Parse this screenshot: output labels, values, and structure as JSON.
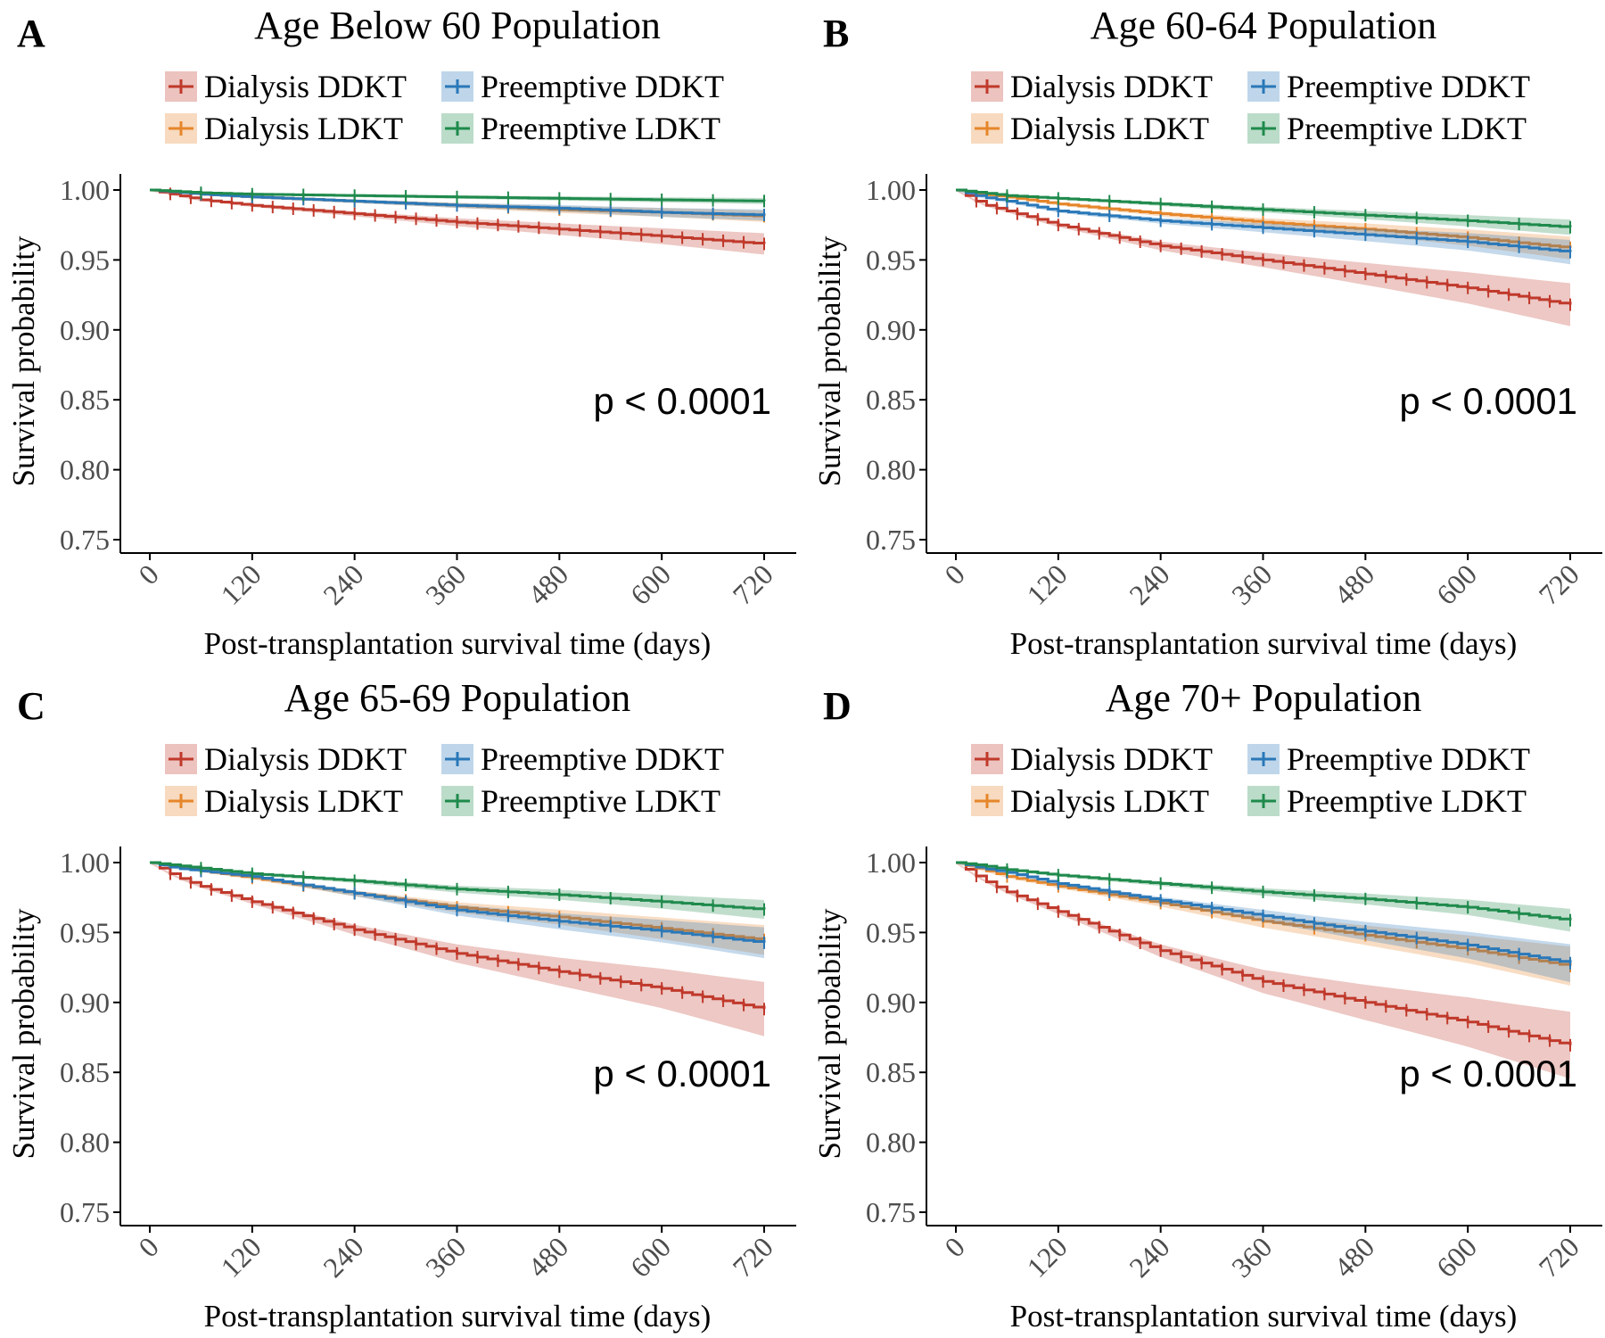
{
  "colors": {
    "Dialysis DDKT": "#c0392b",
    "Dialysis LDKT": "#e6862a",
    "Preemptive DDKT": "#2a78b8",
    "Preemptive LDKT": "#1f8a4c",
    "axis": "#000000",
    "tick_text": "#4d4d4d"
  },
  "chart_data": [
    {
      "panel_letter": "A",
      "type": "line",
      "title": "Age Below 60 Population",
      "xlabel": "Post-transplantation survival time (days)",
      "ylabel": "Survival probability",
      "xticks": [
        "0",
        "120",
        "240",
        "360",
        "480",
        "600",
        "720"
      ],
      "yticks": [
        "0.75",
        "0.80",
        "0.85",
        "0.90",
        "0.95",
        "1.00"
      ],
      "xlim": [
        0,
        730
      ],
      "ylim": [
        0.75,
        1.0
      ],
      "legend": [
        "Dialysis DDKT",
        "Preemptive DDKT",
        "Dialysis LDKT",
        "Preemptive LDKT"
      ],
      "annotation": "p < 0.0001",
      "grid": false,
      "series": [
        {
          "name": "Dialysis DDKT",
          "x": [
            0,
            60,
            120,
            240,
            360,
            480,
            600,
            730
          ],
          "values": [
            1.0,
            0.993,
            0.989,
            0.983,
            0.977,
            0.972,
            0.967,
            0.961
          ]
        },
        {
          "name": "Dialysis LDKT",
          "x": [
            0,
            60,
            120,
            240,
            360,
            480,
            600,
            730
          ],
          "values": [
            1.0,
            0.997,
            0.995,
            0.992,
            0.989,
            0.986,
            0.984,
            0.981
          ]
        },
        {
          "name": "Preemptive DDKT",
          "x": [
            0,
            60,
            120,
            240,
            360,
            480,
            600,
            730
          ],
          "values": [
            1.0,
            0.997,
            0.995,
            0.992,
            0.989,
            0.987,
            0.984,
            0.982
          ]
        },
        {
          "name": "Preemptive LDKT",
          "x": [
            0,
            60,
            120,
            240,
            360,
            480,
            600,
            730
          ],
          "values": [
            1.0,
            0.998,
            0.997,
            0.996,
            0.995,
            0.994,
            0.993,
            0.992
          ]
        }
      ]
    },
    {
      "panel_letter": "B",
      "type": "line",
      "title": "Age 60-64 Population",
      "xlabel": "Post-transplantation survival time (days)",
      "ylabel": "Survival probability",
      "xticks": [
        "0",
        "120",
        "240",
        "360",
        "480",
        "600",
        "720"
      ],
      "yticks": [
        "0.75",
        "0.80",
        "0.85",
        "0.90",
        "0.95",
        "1.00"
      ],
      "xlim": [
        0,
        730
      ],
      "ylim": [
        0.75,
        1.0
      ],
      "legend": [
        "Dialysis DDKT",
        "Preemptive DDKT",
        "Dialysis LDKT",
        "Preemptive LDKT"
      ],
      "annotation": "p < 0.0001",
      "grid": false,
      "series": [
        {
          "name": "Dialysis DDKT",
          "x": [
            0,
            30,
            60,
            120,
            240,
            360,
            480,
            600,
            730
          ],
          "values": [
            1.0,
            0.99,
            0.985,
            0.975,
            0.96,
            0.95,
            0.94,
            0.93,
            0.917
          ]
        },
        {
          "name": "Dialysis LDKT",
          "x": [
            0,
            30,
            60,
            120,
            240,
            360,
            480,
            600,
            730
          ],
          "values": [
            1.0,
            0.997,
            0.995,
            0.99,
            0.983,
            0.977,
            0.972,
            0.966,
            0.958
          ]
        },
        {
          "name": "Preemptive DDKT",
          "x": [
            0,
            30,
            60,
            120,
            240,
            360,
            480,
            600,
            730
          ],
          "values": [
            1.0,
            0.995,
            0.992,
            0.985,
            0.978,
            0.973,
            0.968,
            0.963,
            0.955
          ]
        },
        {
          "name": "Preemptive LDKT",
          "x": [
            0,
            30,
            60,
            120,
            240,
            360,
            480,
            600,
            730
          ],
          "values": [
            1.0,
            0.998,
            0.996,
            0.994,
            0.99,
            0.986,
            0.982,
            0.978,
            0.973
          ]
        }
      ]
    },
    {
      "panel_letter": "C",
      "type": "line",
      "title": "Age 65-69 Population",
      "xlabel": "Post-transplantation survival time (days)",
      "ylabel": "Survival probability",
      "xticks": [
        "0",
        "120",
        "240",
        "360",
        "480",
        "600",
        "720"
      ],
      "yticks": [
        "0.75",
        "0.80",
        "0.85",
        "0.90",
        "0.95",
        "1.00"
      ],
      "xlim": [
        0,
        730
      ],
      "ylim": [
        0.75,
        1.0
      ],
      "legend": [
        "Dialysis DDKT",
        "Preemptive DDKT",
        "Dialysis LDKT",
        "Preemptive LDKT"
      ],
      "annotation": "p < 0.0001",
      "grid": false,
      "series": [
        {
          "name": "Dialysis DDKT",
          "x": [
            0,
            30,
            60,
            120,
            240,
            360,
            480,
            600,
            730
          ],
          "values": [
            1.0,
            0.99,
            0.983,
            0.972,
            0.952,
            0.935,
            0.922,
            0.91,
            0.894
          ]
        },
        {
          "name": "Dialysis LDKT",
          "x": [
            0,
            30,
            60,
            120,
            240,
            360,
            480,
            600,
            730
          ],
          "values": [
            1.0,
            0.997,
            0.994,
            0.989,
            0.978,
            0.968,
            0.961,
            0.953,
            0.944
          ]
        },
        {
          "name": "Preemptive DDKT",
          "x": [
            0,
            30,
            60,
            120,
            240,
            360,
            480,
            600,
            730
          ],
          "values": [
            1.0,
            0.996,
            0.994,
            0.99,
            0.978,
            0.966,
            0.958,
            0.951,
            0.942
          ]
        },
        {
          "name": "Preemptive LDKT",
          "x": [
            0,
            30,
            60,
            120,
            240,
            360,
            480,
            600,
            730
          ],
          "values": [
            1.0,
            0.998,
            0.996,
            0.992,
            0.987,
            0.981,
            0.977,
            0.972,
            0.966
          ]
        }
      ]
    },
    {
      "panel_letter": "D",
      "type": "line",
      "title": "Age 70+ Population",
      "xlabel": "Post-transplantation survival time (days)",
      "ylabel": "Survival probability",
      "xticks": [
        "0",
        "120",
        "240",
        "360",
        "480",
        "600",
        "720"
      ],
      "yticks": [
        "0.75",
        "0.80",
        "0.85",
        "0.90",
        "0.95",
        "1.00"
      ],
      "xlim": [
        0,
        730
      ],
      "ylim": [
        0.75,
        1.0
      ],
      "legend": [
        "Dialysis DDKT",
        "Preemptive DDKT",
        "Dialysis LDKT",
        "Preemptive LDKT"
      ],
      "annotation": "p < 0.0001",
      "grid": false,
      "series": [
        {
          "name": "Dialysis DDKT",
          "x": [
            0,
            30,
            60,
            120,
            240,
            360,
            480,
            600,
            730
          ],
          "values": [
            1.0,
            0.988,
            0.979,
            0.965,
            0.937,
            0.915,
            0.9,
            0.886,
            0.868
          ]
        },
        {
          "name": "Dialysis LDKT",
          "x": [
            0,
            30,
            60,
            120,
            240,
            360,
            480,
            600,
            730
          ],
          "values": [
            1.0,
            0.995,
            0.99,
            0.983,
            0.971,
            0.958,
            0.948,
            0.938,
            0.925
          ]
        },
        {
          "name": "Preemptive DDKT",
          "x": [
            0,
            30,
            60,
            120,
            240,
            360,
            480,
            600,
            730
          ],
          "values": [
            1.0,
            0.996,
            0.993,
            0.985,
            0.973,
            0.962,
            0.951,
            0.941,
            0.927
          ]
        },
        {
          "name": "Preemptive LDKT",
          "x": [
            0,
            30,
            60,
            120,
            240,
            360,
            480,
            600,
            730
          ],
          "values": [
            1.0,
            0.998,
            0.995,
            0.991,
            0.985,
            0.979,
            0.974,
            0.968,
            0.958
          ]
        }
      ]
    }
  ]
}
